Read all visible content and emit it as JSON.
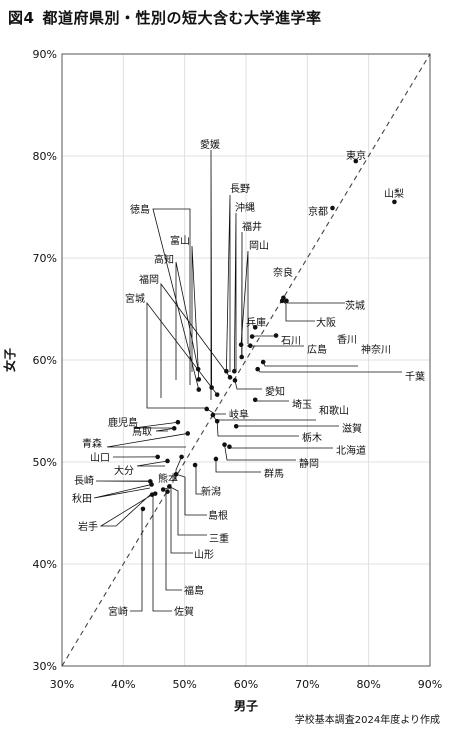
{
  "figure": {
    "number": "図4",
    "title": "都道府県別・性別の短大含む大学進学率",
    "source": "学校基本調査2024年度より作成"
  },
  "chart_data": {
    "type": "scatter",
    "title": "図4　都道府県別・性別の短大含む大学進学率",
    "xlabel": "男子",
    "ylabel": "女子",
    "xlim": [
      30,
      90
    ],
    "ylim": [
      30,
      90
    ],
    "x_ticks": [
      "30%",
      "40%",
      "50%",
      "60%",
      "70%",
      "80%",
      "90%"
    ],
    "y_ticks": [
      "30%",
      "40%",
      "50%",
      "60%",
      "70%",
      "80%",
      "90%"
    ],
    "grid": true,
    "reference_line": "y = x (dashed)",
    "points": [
      {
        "name": "東京",
        "x": 77.9,
        "y": 79.5
      },
      {
        "name": "山梨",
        "x": 84.2,
        "y": 75.5
      },
      {
        "name": "京都",
        "x": 74.1,
        "y": 74.9
      },
      {
        "name": "奈良",
        "x": 66.1,
        "y": 66.1
      },
      {
        "name": "茨城",
        "x": 66.6,
        "y": 65.8
      },
      {
        "name": "大阪",
        "x": 65.9,
        "y": 65.8
      },
      {
        "name": "愛媛",
        "x": 54.4,
        "y": 57.3
      },
      {
        "name": "長野",
        "x": 56.8,
        "y": 58.9
      },
      {
        "name": "沖縄",
        "x": 58.1,
        "y": 58.9
      },
      {
        "name": "福井",
        "x": 59.3,
        "y": 60.3
      },
      {
        "name": "岡山",
        "x": 59.2,
        "y": 61.5
      },
      {
        "name": "徳島",
        "x": 52.3,
        "y": 57.1
      },
      {
        "name": "富山",
        "x": 52.3,
        "y": 58.1
      },
      {
        "name": "高知",
        "x": 52.2,
        "y": 59.1
      },
      {
        "name": "福岡",
        "x": 57.4,
        "y": 58.3
      },
      {
        "name": "宮城",
        "x": 55.3,
        "y": 56.6
      },
      {
        "name": "兵庫",
        "x": 61.5,
        "y": 63.2
      },
      {
        "name": "石川",
        "x": 61.0,
        "y": 62.3
      },
      {
        "name": "広島",
        "x": 60.7,
        "y": 61.4
      },
      {
        "name": "香川",
        "x": 64.9,
        "y": 62.4
      },
      {
        "name": "神奈川",
        "x": 62.8,
        "y": 59.8
      },
      {
        "name": "千葉",
        "x": 61.9,
        "y": 59.1
      },
      {
        "name": "愛知",
        "x": 58.2,
        "y": 58.0
      },
      {
        "name": "埼玉",
        "x": 61.5,
        "y": 56.1
      },
      {
        "name": "岐阜",
        "x": 53.6,
        "y": 55.2
      },
      {
        "name": "和歌山",
        "x": 54.6,
        "y": 54.6
      },
      {
        "name": "滋賀",
        "x": 58.4,
        "y": 53.5
      },
      {
        "name": "栃木",
        "x": 55.3,
        "y": 54.0
      },
      {
        "name": "北海道",
        "x": 57.3,
        "y": 51.5
      },
      {
        "name": "鹿児島",
        "x": 48.9,
        "y": 53.9
      },
      {
        "name": "鳥取",
        "x": 48.3,
        "y": 53.3
      },
      {
        "name": "静岡",
        "x": 56.5,
        "y": 51.7
      },
      {
        "name": "群馬",
        "x": 55.1,
        "y": 50.3
      },
      {
        "name": "青森",
        "x": 50.5,
        "y": 52.8
      },
      {
        "name": "山口",
        "x": 45.6,
        "y": 50.5
      },
      {
        "name": "大分",
        "x": 47.2,
        "y": 50.1
      },
      {
        "name": "熊本",
        "x": 49.5,
        "y": 50.5
      },
      {
        "name": "新潟",
        "x": 51.7,
        "y": 49.7
      },
      {
        "name": "長崎",
        "x": 44.4,
        "y": 48.1
      },
      {
        "name": "秋田",
        "x": 44.6,
        "y": 47.8
      },
      {
        "name": "岩手",
        "x": 44.7,
        "y": 46.8
      },
      {
        "name": "島根",
        "x": 48.6,
        "y": 48.8
      },
      {
        "name": "三重",
        "x": 47.5,
        "y": 47.6
      },
      {
        "name": "山形",
        "x": 46.5,
        "y": 47.3
      },
      {
        "name": "福島",
        "x": 47.2,
        "y": 47.1
      },
      {
        "name": "佐賀",
        "x": 45.2,
        "y": 46.9
      },
      {
        "name": "宮崎",
        "x": 43.2,
        "y": 45.4
      }
    ]
  }
}
